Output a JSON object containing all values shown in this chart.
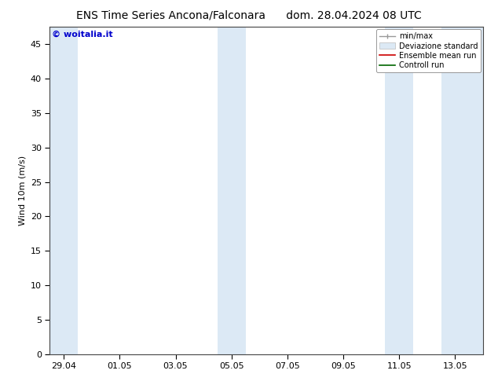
{
  "title": "ENS Time Series Ancona/Falconara",
  "title2": "dom. 28.04.2024 08 UTC",
  "ylabel": "Wind 10m (m/s)",
  "watermark": "© woitalia.it",
  "ylim": [
    0,
    47.5
  ],
  "yticks": [
    0,
    5,
    10,
    15,
    20,
    25,
    30,
    35,
    40,
    45
  ],
  "xtick_labels": [
    "29.04",
    "01.05",
    "03.05",
    "05.05",
    "07.05",
    "09.05",
    "11.05",
    "13.05"
  ],
  "xtick_positions": [
    0,
    2,
    4,
    6,
    8,
    10,
    12,
    14
  ],
  "xmin": -0.5,
  "xmax": 15.0,
  "bg_color": "#ffffff",
  "plot_bg_color": "#ffffff",
  "shaded_bands": [
    {
      "xmin": -0.5,
      "xmax": 0.5,
      "color": "#dce9f5"
    },
    {
      "xmin": 5.5,
      "xmax": 6.5,
      "color": "#dce9f5"
    },
    {
      "xmin": 11.5,
      "xmax": 12.5,
      "color": "#dce9f5"
    },
    {
      "xmin": 13.5,
      "xmax": 15.0,
      "color": "#dce9f5"
    }
  ],
  "legend_labels": [
    "min/max",
    "Deviazione standard",
    "Ensemble mean run",
    "Controll run"
  ],
  "legend_colors_line": [
    "#999999",
    "#ff0000",
    "#008000"
  ],
  "title_fontsize": 10,
  "tick_fontsize": 8,
  "ylabel_fontsize": 8,
  "watermark_color": "#0000cc",
  "watermark_fontsize": 8
}
